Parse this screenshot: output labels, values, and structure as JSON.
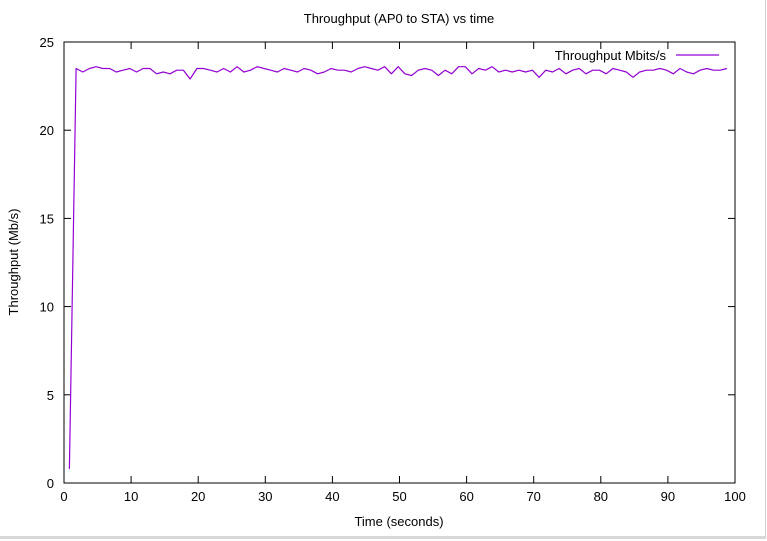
{
  "chart_data": {
    "type": "line",
    "title": "Throughput (AP0 to STA) vs time",
    "xlabel": "Time (seconds)",
    "ylabel": "Throughput (Mb/s)",
    "xlim": [
      0,
      100
    ],
    "ylim": [
      0,
      25
    ],
    "xticks": [
      0,
      10,
      20,
      30,
      40,
      50,
      60,
      70,
      80,
      90,
      100
    ],
    "yticks": [
      0,
      5,
      10,
      15,
      20,
      25
    ],
    "grid": false,
    "legend_position": "top-right",
    "series": [
      {
        "name": "Throughput Mbits/s",
        "color": "#9400d3",
        "x": [
          0.8,
          1.8,
          2.8,
          3.8,
          4.8,
          5.8,
          6.8,
          7.8,
          8.8,
          9.8,
          10.8,
          11.8,
          12.8,
          13.8,
          14.8,
          15.8,
          16.8,
          17.8,
          18.8,
          19.8,
          20.8,
          21.8,
          22.8,
          23.8,
          24.8,
          25.8,
          26.8,
          27.8,
          28.8,
          29.8,
          30.8,
          31.8,
          32.8,
          33.8,
          34.8,
          35.8,
          36.8,
          37.8,
          38.8,
          39.8,
          40.8,
          41.8,
          42.8,
          43.8,
          44.8,
          45.8,
          46.8,
          47.8,
          48.8,
          49.8,
          50.8,
          51.8,
          52.8,
          53.8,
          54.8,
          55.8,
          56.8,
          57.8,
          58.8,
          59.8,
          60.8,
          61.8,
          62.8,
          63.8,
          64.8,
          65.8,
          66.8,
          67.8,
          68.8,
          69.8,
          70.8,
          71.8,
          72.8,
          73.8,
          74.8,
          75.8,
          76.8,
          77.8,
          78.8,
          79.8,
          80.8,
          81.8,
          82.8,
          83.8,
          84.8,
          85.8,
          86.8,
          87.8,
          88.8,
          89.8,
          90.8,
          91.8,
          92.8,
          93.8,
          94.8,
          95.8,
          96.8,
          97.8,
          98.8
        ],
        "values": [
          0.8,
          23.5,
          23.3,
          23.5,
          23.6,
          23.5,
          23.5,
          23.3,
          23.4,
          23.5,
          23.3,
          23.5,
          23.5,
          23.2,
          23.3,
          23.2,
          23.4,
          23.4,
          22.9,
          23.5,
          23.5,
          23.4,
          23.3,
          23.5,
          23.3,
          23.6,
          23.3,
          23.4,
          23.6,
          23.5,
          23.4,
          23.3,
          23.5,
          23.4,
          23.3,
          23.5,
          23.4,
          23.2,
          23.3,
          23.5,
          23.4,
          23.4,
          23.3,
          23.5,
          23.6,
          23.5,
          23.4,
          23.6,
          23.2,
          23.6,
          23.2,
          23.1,
          23.4,
          23.5,
          23.4,
          23.1,
          23.4,
          23.2,
          23.6,
          23.6,
          23.2,
          23.5,
          23.4,
          23.6,
          23.3,
          23.4,
          23.3,
          23.4,
          23.3,
          23.4,
          23.0,
          23.4,
          23.3,
          23.5,
          23.2,
          23.4,
          23.5,
          23.2,
          23.4,
          23.4,
          23.2,
          23.5,
          23.4,
          23.3,
          23.0,
          23.3,
          23.4,
          23.4,
          23.5,
          23.4,
          23.2,
          23.5,
          23.3,
          23.2,
          23.4,
          23.5,
          23.4,
          23.4,
          23.5
        ]
      }
    ]
  }
}
